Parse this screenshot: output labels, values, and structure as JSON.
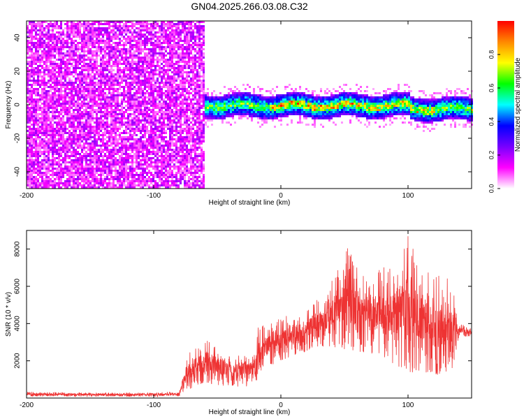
{
  "title": "GN04.2025.266.03.08.C32",
  "chart_data": [
    {
      "type": "heatmap",
      "title": "GN04.2025.266.03.08.C32",
      "xlabel": "Height of straight line (km)",
      "ylabel": "Frequency (Hz)",
      "xlim": [
        -200,
        150
      ],
      "ylim": [
        -50,
        50
      ],
      "xticks": [
        -200,
        -100,
        0,
        100
      ],
      "yticks": [
        -40,
        -20,
        0,
        20,
        40
      ],
      "colorbar": {
        "label": "Normalized spectral amplitude",
        "range": [
          0,
          1
        ],
        "ticks": [
          "0.0",
          "0.2",
          "0.4",
          "0.6",
          "0.8"
        ],
        "colors": [
          "#ffffff",
          "#ff00ff",
          "#7700ff",
          "#0000ff",
          "#00ffff",
          "#00ff00",
          "#ffff00",
          "#ff8800",
          "#ff0000"
        ]
      },
      "regions": [
        {
          "x_range": [
            -200,
            -61
          ],
          "freq_range": [
            -50,
            50
          ],
          "amplitude": 0.08,
          "description": "broadband noise"
        },
        {
          "x_range": [
            -61,
            150
          ],
          "freq_center": 0,
          "freq_halfwidth": 5,
          "amplitude": 0.5,
          "description": "signal band"
        },
        {
          "x_range": [
            -10,
            120
          ],
          "freq_center": 0,
          "freq_halfwidth": 2,
          "amplitude": 0.85,
          "description": "strongest signal"
        }
      ]
    },
    {
      "type": "line",
      "xlabel": "Height of straight line (km)",
      "ylabel": "SNR (10 * v/v)",
      "xlim": [
        -200,
        150
      ],
      "ylim": [
        0,
        9000
      ],
      "xticks": [
        -200,
        -100,
        0,
        100
      ],
      "yticks": [
        2000,
        4000,
        6000,
        8000
      ],
      "color": "#ee3333",
      "series": [
        {
          "name": "SNR",
          "envelope_x": [
            -200,
            -150,
            -100,
            -80,
            -75,
            -60,
            -50,
            -40,
            -30,
            -20,
            -18,
            -10,
            0,
            10,
            20,
            30,
            40,
            50,
            60,
            70,
            80,
            90,
            100,
            110,
            120,
            130,
            135,
            140,
            150
          ],
          "envelope_lo": [
            100,
            80,
            80,
            90,
            400,
            800,
            700,
            600,
            600,
            700,
            1200,
            1700,
            2000,
            2300,
            2400,
            2800,
            2700,
            2600,
            2500,
            2400,
            2000,
            1800,
            1300,
            1500,
            1200,
            1300,
            1600,
            3300,
            3300
          ],
          "envelope_hi": [
            350,
            300,
            300,
            350,
            2200,
            3400,
            2800,
            2400,
            2500,
            2600,
            3800,
            4000,
            4300,
            4700,
            5000,
            5500,
            6300,
            8500,
            7200,
            6600,
            7000,
            7300,
            8800,
            7200,
            6800,
            6600,
            6400,
            4000,
            3800
          ]
        }
      ]
    }
  ]
}
